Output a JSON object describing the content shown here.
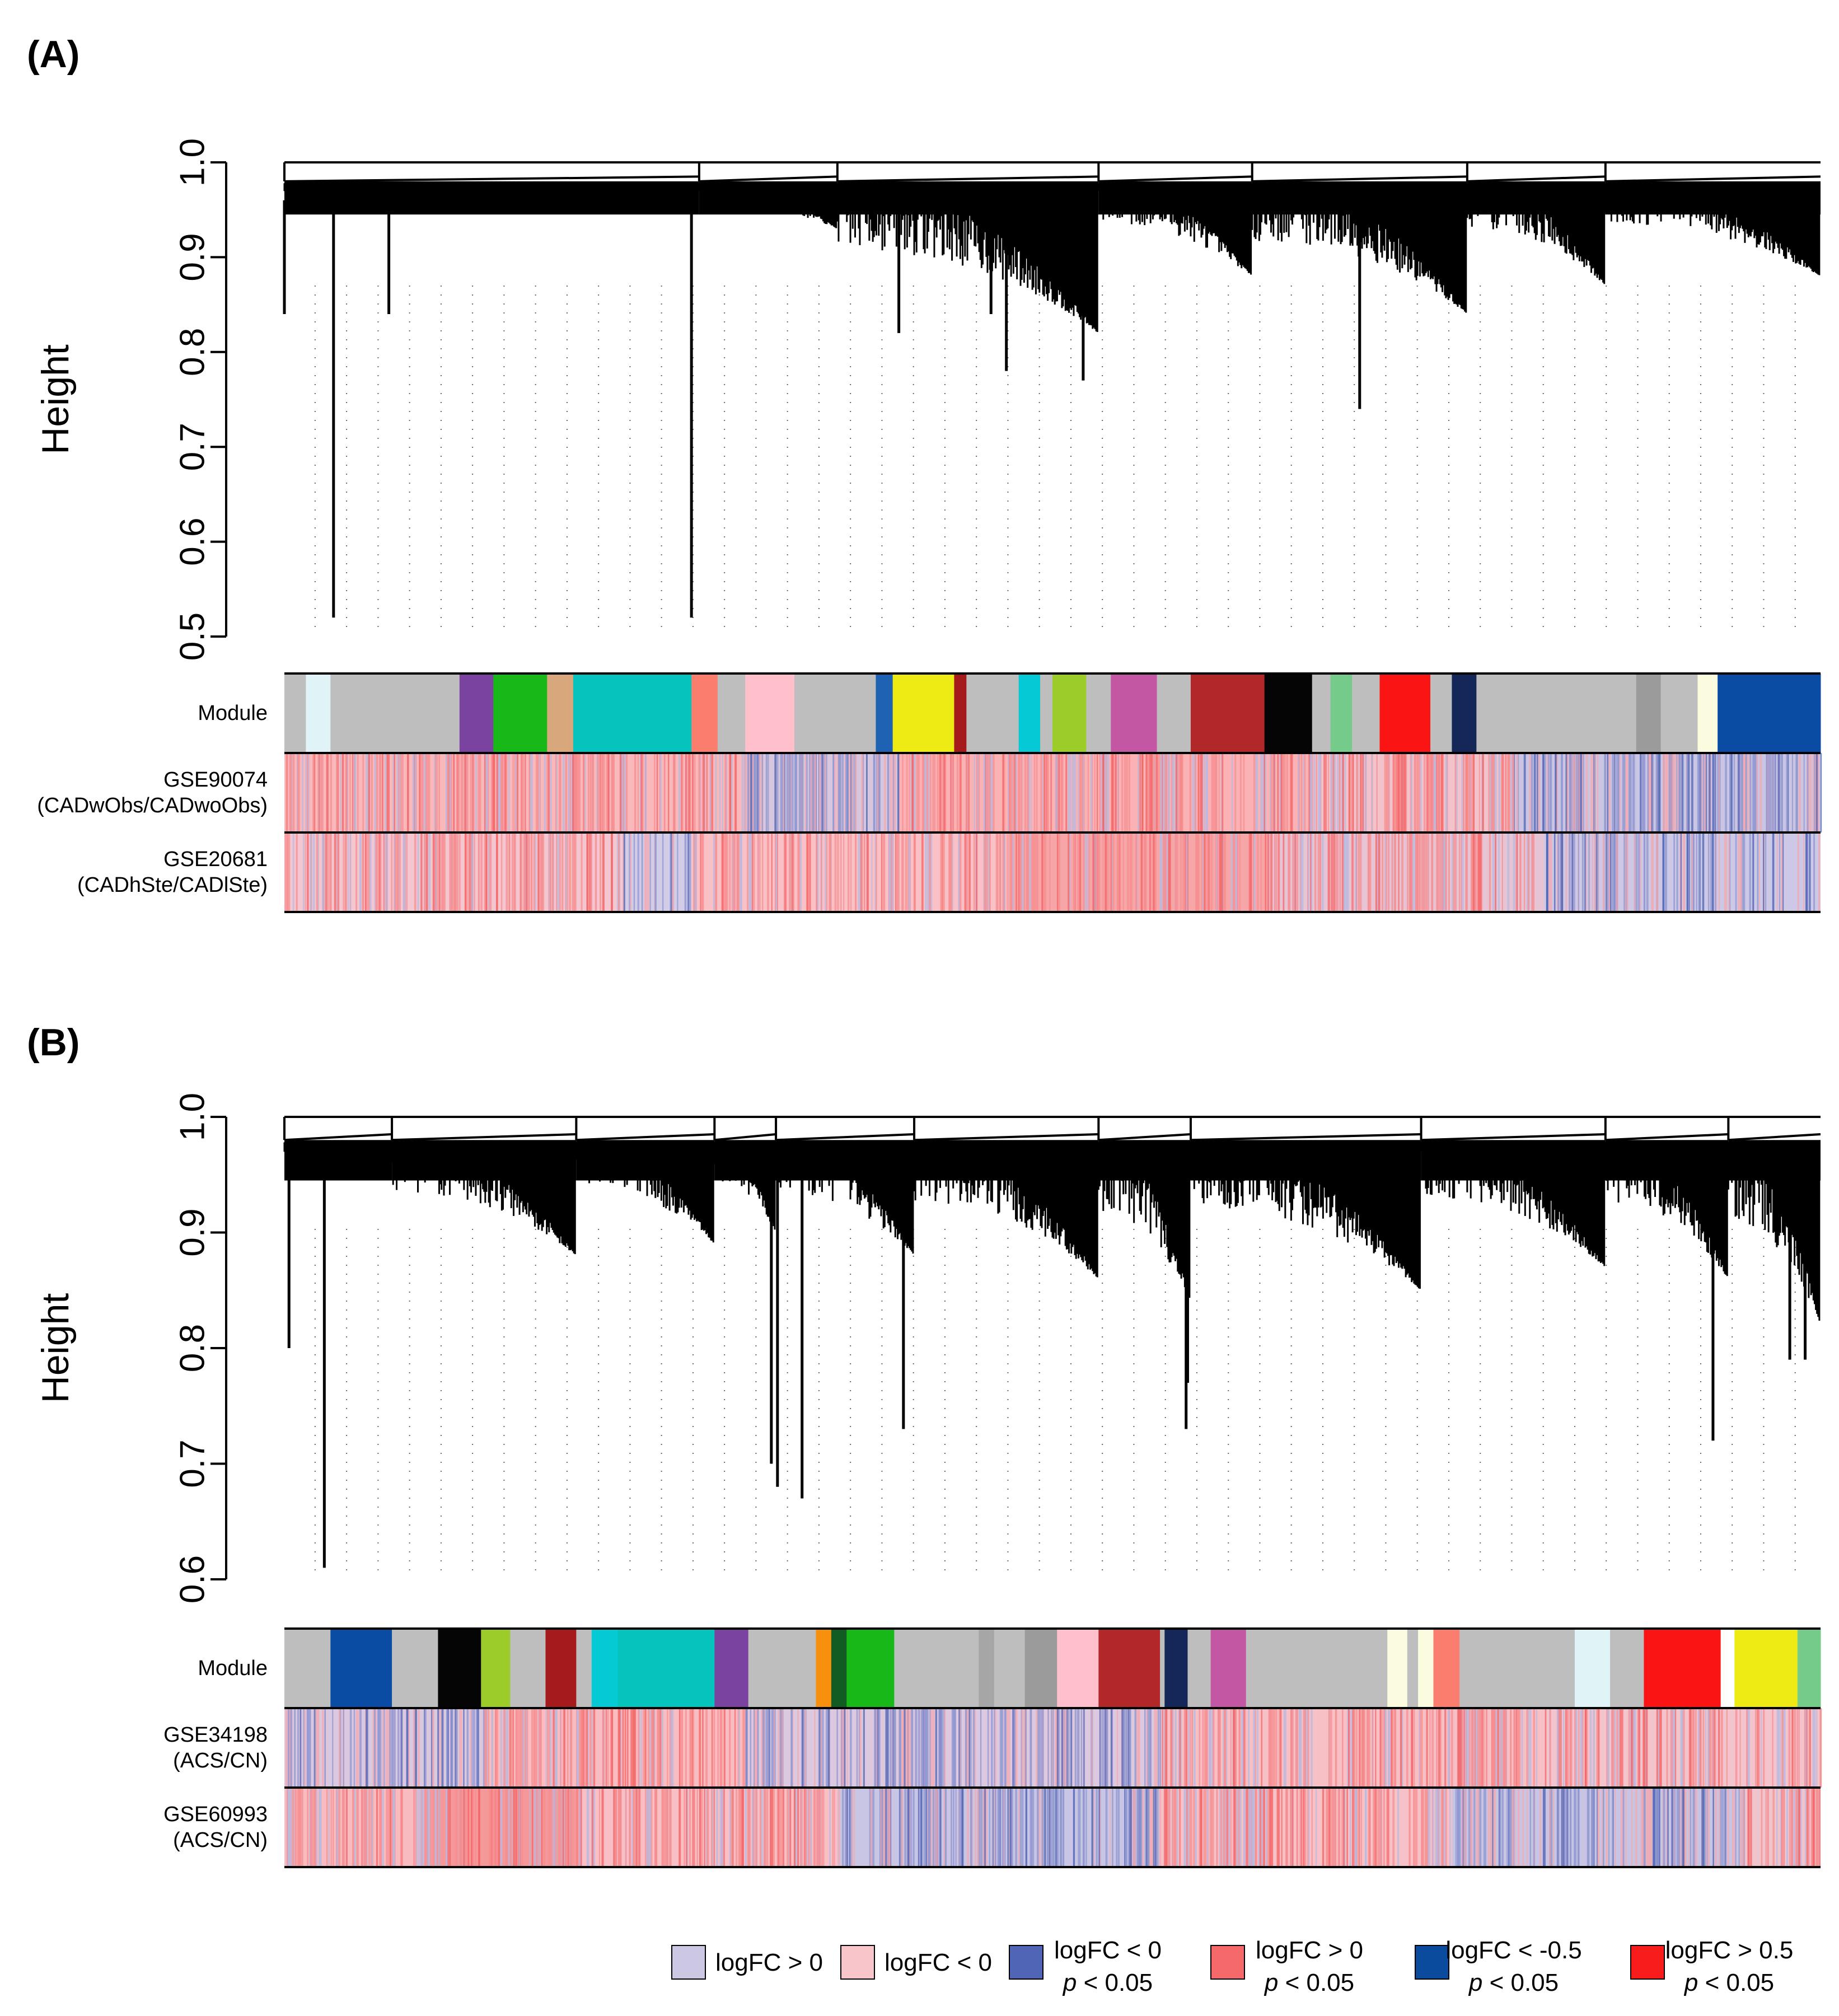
{
  "chart_data": [
    {
      "type": "dendrogram-with-color-bars",
      "panel_label": "(A)",
      "ylabel": "Height",
      "ylim": [
        0.5,
        1.0
      ],
      "y_ticks": [
        {
          "value": 1.0,
          "label": "1.0"
        },
        {
          "value": 0.9,
          "label": "0.9"
        },
        {
          "value": 0.8,
          "label": "0.8"
        },
        {
          "value": 0.7,
          "label": "0.7"
        },
        {
          "value": 0.6,
          "label": "0.6"
        },
        {
          "value": 0.5,
          "label": "0.5"
        }
      ],
      "dendrogram": {
        "baseline": 0.98,
        "groups": [
          [
            0.0,
            0.27,
            0.95
          ],
          [
            0.27,
            0.36,
            0.93
          ],
          [
            0.36,
            0.53,
            0.82
          ],
          [
            0.53,
            0.63,
            0.88
          ],
          [
            0.63,
            0.77,
            0.84
          ],
          [
            0.77,
            0.86,
            0.87
          ],
          [
            0.86,
            1.0,
            0.88
          ]
        ],
        "drops": [
          [
            0.032,
            0.52
          ],
          [
            0.068,
            0.84
          ],
          [
            0.265,
            0.52
          ],
          [
            0.4,
            0.82
          ],
          [
            0.46,
            0.84
          ],
          [
            0.47,
            0.78
          ],
          [
            0.52,
            0.77
          ],
          [
            0.7,
            0.74
          ],
          [
            0.0,
            0.84
          ]
        ]
      },
      "rows": [
        {
          "label_lines": [
            "Module"
          ],
          "type": "modules",
          "segments": [
            [
              "#bebebe",
              0.0,
              0.014
            ],
            [
              "#e0f3f6",
              0.014,
              0.03
            ],
            [
              "#bebebe",
              0.03,
              0.114
            ],
            [
              "#7b43a0",
              0.114,
              0.136
            ],
            [
              "#17b817",
              0.136,
              0.171
            ],
            [
              "#d8a77c",
              0.171,
              0.188
            ],
            [
              "#05c4be",
              0.188,
              0.265
            ],
            [
              "#fa7d6e",
              0.265,
              0.282
            ],
            [
              "#bebebe",
              0.282,
              0.3
            ],
            [
              "#ffc0cb",
              0.3,
              0.332
            ],
            [
              "#bebebe",
              0.332,
              0.385
            ],
            [
              "#1e62b3",
              0.385,
              0.396
            ],
            [
              "#eeea13",
              0.396,
              0.436
            ],
            [
              "#a51a1a",
              0.436,
              0.444
            ],
            [
              "#bebebe",
              0.444,
              0.478
            ],
            [
              "#05cad6",
              0.478,
              0.492
            ],
            [
              "#bebebe",
              0.492,
              0.5
            ],
            [
              "#9ccc2a",
              0.5,
              0.522
            ],
            [
              "#bebebe",
              0.522,
              0.538
            ],
            [
              "#c457a3",
              0.538,
              0.568
            ],
            [
              "#bebebe",
              0.568,
              0.59
            ],
            [
              "#b22727",
              0.59,
              0.638
            ],
            [
              "#050505",
              0.638,
              0.669
            ],
            [
              "#bebebe",
              0.669,
              0.681
            ],
            [
              "#75cc8a",
              0.681,
              0.695
            ],
            [
              "#bebebe",
              0.695,
              0.713
            ],
            [
              "#fa1414",
              0.713,
              0.746
            ],
            [
              "#bebebe",
              0.746,
              0.76
            ],
            [
              "#152758",
              0.76,
              0.776
            ],
            [
              "#bebebe",
              0.776,
              0.88
            ],
            [
              "#9b9b9b",
              0.88,
              0.896
            ],
            [
              "#bebebe",
              0.896,
              0.92
            ],
            [
              "#fbfbdf",
              0.92,
              0.933
            ],
            [
              "#0a4ba3",
              0.933,
              1.0
            ]
          ]
        },
        {
          "label_lines": [
            "GSE90074",
            "(CADwObs/CADwoObs)"
          ],
          "type": "logfc",
          "base": [
            "#efc8d1",
            0.0,
            1.0
          ],
          "zones": [
            [
              0.0,
              0.3,
              "#f9b9bb"
            ],
            [
              0.3,
              0.4,
              "#d6c6de"
            ],
            [
              0.4,
              0.67,
              "#fbb2b4"
            ],
            [
              0.67,
              0.8,
              "#f2c3ca"
            ],
            [
              0.8,
              1.0,
              "#c9c5e3"
            ]
          ],
          "accent_density": 0.35
        },
        {
          "label_lines": [
            "GSE20681",
            "(CADhSte/CADlSte)"
          ],
          "type": "logfc",
          "base": [
            "#f6c3c9",
            0.0,
            1.0
          ],
          "zones": [
            [
              0.0,
              0.22,
              "#f4c6cf"
            ],
            [
              0.22,
              0.265,
              "#d2cce6"
            ],
            [
              0.265,
              0.47,
              "#f9c1c6"
            ],
            [
              0.47,
              0.64,
              "#f7a6a8"
            ],
            [
              0.64,
              0.82,
              "#e6c4d4"
            ],
            [
              0.82,
              1.0,
              "#ccc8e5"
            ]
          ],
          "accent_density": 0.3
        }
      ]
    },
    {
      "type": "dendrogram-with-color-bars",
      "panel_label": "(B)",
      "ylabel": "Height",
      "ylim": [
        0.6,
        1.0
      ],
      "y_ticks": [
        {
          "value": 1.0,
          "label": "1.0"
        },
        {
          "value": 0.9,
          "label": "0.9"
        },
        {
          "value": 0.8,
          "label": "0.8"
        },
        {
          "value": 0.7,
          "label": "0.7"
        },
        {
          "value": 0.6,
          "label": "0.6"
        }
      ],
      "dendrogram": {
        "baseline": 0.98,
        "groups": [
          [
            0.0,
            0.07,
            0.95
          ],
          [
            0.07,
            0.19,
            0.88
          ],
          [
            0.19,
            0.28,
            0.89
          ],
          [
            0.28,
            0.32,
            0.9
          ],
          [
            0.32,
            0.41,
            0.88
          ],
          [
            0.41,
            0.53,
            0.86
          ],
          [
            0.53,
            0.59,
            0.84
          ],
          [
            0.59,
            0.74,
            0.85
          ],
          [
            0.74,
            0.86,
            0.87
          ],
          [
            0.86,
            0.94,
            0.86
          ],
          [
            0.94,
            1.0,
            0.82
          ]
        ],
        "drops": [
          [
            0.003,
            0.8
          ],
          [
            0.026,
            0.61
          ],
          [
            0.317,
            0.7
          ],
          [
            0.321,
            0.68
          ],
          [
            0.337,
            0.67
          ],
          [
            0.403,
            0.73
          ],
          [
            0.587,
            0.73
          ],
          [
            0.588,
            0.77
          ],
          [
            0.93,
            0.72
          ],
          [
            0.98,
            0.79
          ],
          [
            0.99,
            0.79
          ]
        ]
      },
      "rows": [
        {
          "label_lines": [
            "Module"
          ],
          "type": "modules",
          "segments": [
            [
              "#bebebe",
              0.0,
              0.03
            ],
            [
              "#0a4ba3",
              0.03,
              0.07
            ],
            [
              "#bebebe",
              0.07,
              0.1
            ],
            [
              "#050505",
              0.1,
              0.128
            ],
            [
              "#9ccc2a",
              0.128,
              0.147
            ],
            [
              "#bebebe",
              0.147,
              0.17
            ],
            [
              "#a51a1a",
              0.17,
              0.19
            ],
            [
              "#bebebe",
              0.19,
              0.2
            ],
            [
              "#05cad6",
              0.2,
              0.217
            ],
            [
              "#05c4be",
              0.217,
              0.28
            ],
            [
              "#7b43a0",
              0.28,
              0.302
            ],
            [
              "#bebebe",
              0.302,
              0.346
            ],
            [
              "#f7900d",
              0.346,
              0.356
            ],
            [
              "#105c23",
              0.356,
              0.366
            ],
            [
              "#17b817",
              0.366,
              0.397
            ],
            [
              "#bebebe",
              0.397,
              0.452
            ],
            [
              "#a6a6a6",
              0.452,
              0.462
            ],
            [
              "#bebebe",
              0.462,
              0.482
            ],
            [
              "#9b9b9b",
              0.482,
              0.503
            ],
            [
              "#ffc0cb",
              0.503,
              0.53
            ],
            [
              "#b22727",
              0.53,
              0.57
            ],
            [
              "#bebebe",
              0.57,
              0.573
            ],
            [
              "#152758",
              0.573,
              0.588
            ],
            [
              "#bebebe",
              0.588,
              0.603
            ],
            [
              "#c457a3",
              0.603,
              0.626
            ],
            [
              "#bebebe",
              0.626,
              0.718
            ],
            [
              "#fbfbdf",
              0.718,
              0.731
            ],
            [
              "#bebebe",
              0.731,
              0.738
            ],
            [
              "#fbfbdf",
              0.738,
              0.748
            ],
            [
              "#fa7d6e",
              0.748,
              0.765
            ],
            [
              "#bebebe",
              0.765,
              0.84
            ],
            [
              "#e0f3f6",
              0.84,
              0.863
            ],
            [
              "#bebebe",
              0.863,
              0.885
            ],
            [
              "#fa1414",
              0.885,
              0.935
            ],
            [
              "#ffffff",
              0.935,
              0.944
            ],
            [
              "#eeea13",
              0.944,
              0.985
            ],
            [
              "#75cc8a",
              0.985,
              1.0
            ]
          ]
        },
        {
          "label_lines": [
            "GSE34198",
            "(ACS/CN)"
          ],
          "type": "logfc",
          "base": [
            "#efc8d1",
            0.0,
            1.0
          ],
          "zones": [
            [
              0.0,
              0.13,
              "#d9c8e0"
            ],
            [
              0.13,
              0.3,
              "#f9bcc0"
            ],
            [
              0.3,
              0.57,
              "#dcc8df"
            ],
            [
              0.57,
              0.82,
              "#f7c0c5"
            ],
            [
              0.82,
              1.0,
              "#f4c4cc"
            ]
          ],
          "accent_density": 0.3
        },
        {
          "label_lines": [
            "GSE60993",
            "(ACS/CN)"
          ],
          "type": "logfc",
          "base": [
            "#f6c3c9",
            0.0,
            1.0
          ],
          "zones": [
            [
              0.0,
              0.1,
              "#f8bcc0"
            ],
            [
              0.1,
              0.19,
              "#f59899"
            ],
            [
              0.19,
              0.36,
              "#f8c0c4"
            ],
            [
              0.36,
              0.57,
              "#c9c5e4"
            ],
            [
              0.57,
              0.76,
              "#f6c1c7"
            ],
            [
              0.76,
              0.95,
              "#c8c5e4"
            ],
            [
              0.95,
              1.0,
              "#efc4cc"
            ]
          ],
          "accent_density": 0.35
        }
      ]
    }
  ],
  "legend": [
    {
      "fill": "#ccc8e4",
      "line1": "logFC > 0",
      "line2": ""
    },
    {
      "fill": "#f8c6ca",
      "line1": "logFC < 0",
      "line2": ""
    },
    {
      "fill": "#5065b5",
      "line1": "logFC < 0",
      "line2": "p < 0.05"
    },
    {
      "fill": "#f5696a",
      "line1": "logFC > 0",
      "line2": "p < 0.05"
    },
    {
      "fill": "#0a4b9d",
      "line1": "logFC < -0.5",
      "line2": "p < 0.05"
    },
    {
      "fill": "#f81c1d",
      "line1": "logFC > 0.5",
      "line2": "p < 0.05"
    }
  ]
}
